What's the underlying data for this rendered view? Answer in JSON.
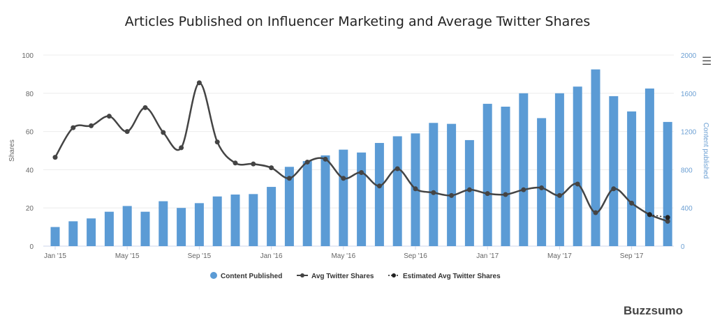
{
  "chart_data": {
    "type": "bar+line",
    "title": "Articles Published on Influencer Marketing and Average Twitter Shares",
    "ylabel_left": "Shares",
    "ylabel_right": "Content published",
    "ylim_left": [
      0,
      100
    ],
    "ylim_right": [
      0,
      2000
    ],
    "yticks_left": [
      "0",
      "20",
      "40",
      "60",
      "80",
      "100"
    ],
    "yticks_right": [
      "0",
      "400",
      "800",
      "1200",
      "1600",
      "2000"
    ],
    "grid": true,
    "legend_position": "bottom",
    "categories": [
      "Jan '15",
      "Feb '15",
      "Mar '15",
      "Apr '15",
      "May '15",
      "Jun '15",
      "Jul '15",
      "Aug '15",
      "Sep '15",
      "Oct '15",
      "Nov '15",
      "Dec '15",
      "Jan '16",
      "Feb '16",
      "Mar '16",
      "Apr '16",
      "May '16",
      "Jun '16",
      "Jul '16",
      "Aug '16",
      "Sep '16",
      "Oct '16",
      "Nov '16",
      "Dec '16",
      "Jan '17",
      "Feb '17",
      "Mar '17",
      "Apr '17",
      "May '17",
      "Jun '17",
      "Jul '17",
      "Aug '17",
      "Sep '17",
      "Oct '17",
      "Nov '17"
    ],
    "xtick_labels": [
      "Jan '15",
      "May '15",
      "Sep '15",
      "Jan '16",
      "May '16",
      "Sep '16",
      "Jan '17",
      "May '17",
      "Sep '17"
    ],
    "series": [
      {
        "name": "Content Published",
        "type": "bar",
        "axis": "right",
        "color": "#5b9bd5",
        "values": [
          200,
          260,
          290,
          360,
          420,
          360,
          470,
          400,
          450,
          520,
          540,
          545,
          620,
          830,
          890,
          950,
          1010,
          980,
          1080,
          1150,
          1180,
          1290,
          1280,
          1110,
          1490,
          1460,
          1600,
          1340,
          1600,
          1670,
          1850,
          1570,
          1410,
          1650,
          1300
        ]
      },
      {
        "name": "Avg Twitter Shares",
        "type": "line",
        "axis": "left",
        "color": "#444444",
        "values": [
          46.5,
          62,
          63,
          68,
          60,
          72.5,
          59.5,
          51.5,
          85.5,
          54.5,
          43.5,
          43,
          41,
          35.5,
          44,
          45.5,
          35.5,
          38.5,
          31.5,
          40.5,
          30,
          28,
          26.5,
          29.5,
          27.5,
          27,
          29.5,
          30.5,
          26.5,
          32.5,
          17.5,
          30,
          22.5,
          16.5,
          13
        ]
      },
      {
        "name": "Estimated Avg Twitter Shares",
        "type": "line",
        "axis": "left",
        "style": "dotted",
        "color": "#222222",
        "values": [
          null,
          null,
          null,
          null,
          null,
          null,
          null,
          null,
          null,
          null,
          null,
          null,
          null,
          null,
          null,
          null,
          null,
          null,
          null,
          null,
          null,
          null,
          null,
          null,
          null,
          null,
          null,
          null,
          null,
          null,
          null,
          null,
          null,
          16.5,
          15
        ]
      }
    ]
  },
  "branding": {
    "logo": "Buzzsumo"
  },
  "menu_icon": "hamburger-menu-icon"
}
